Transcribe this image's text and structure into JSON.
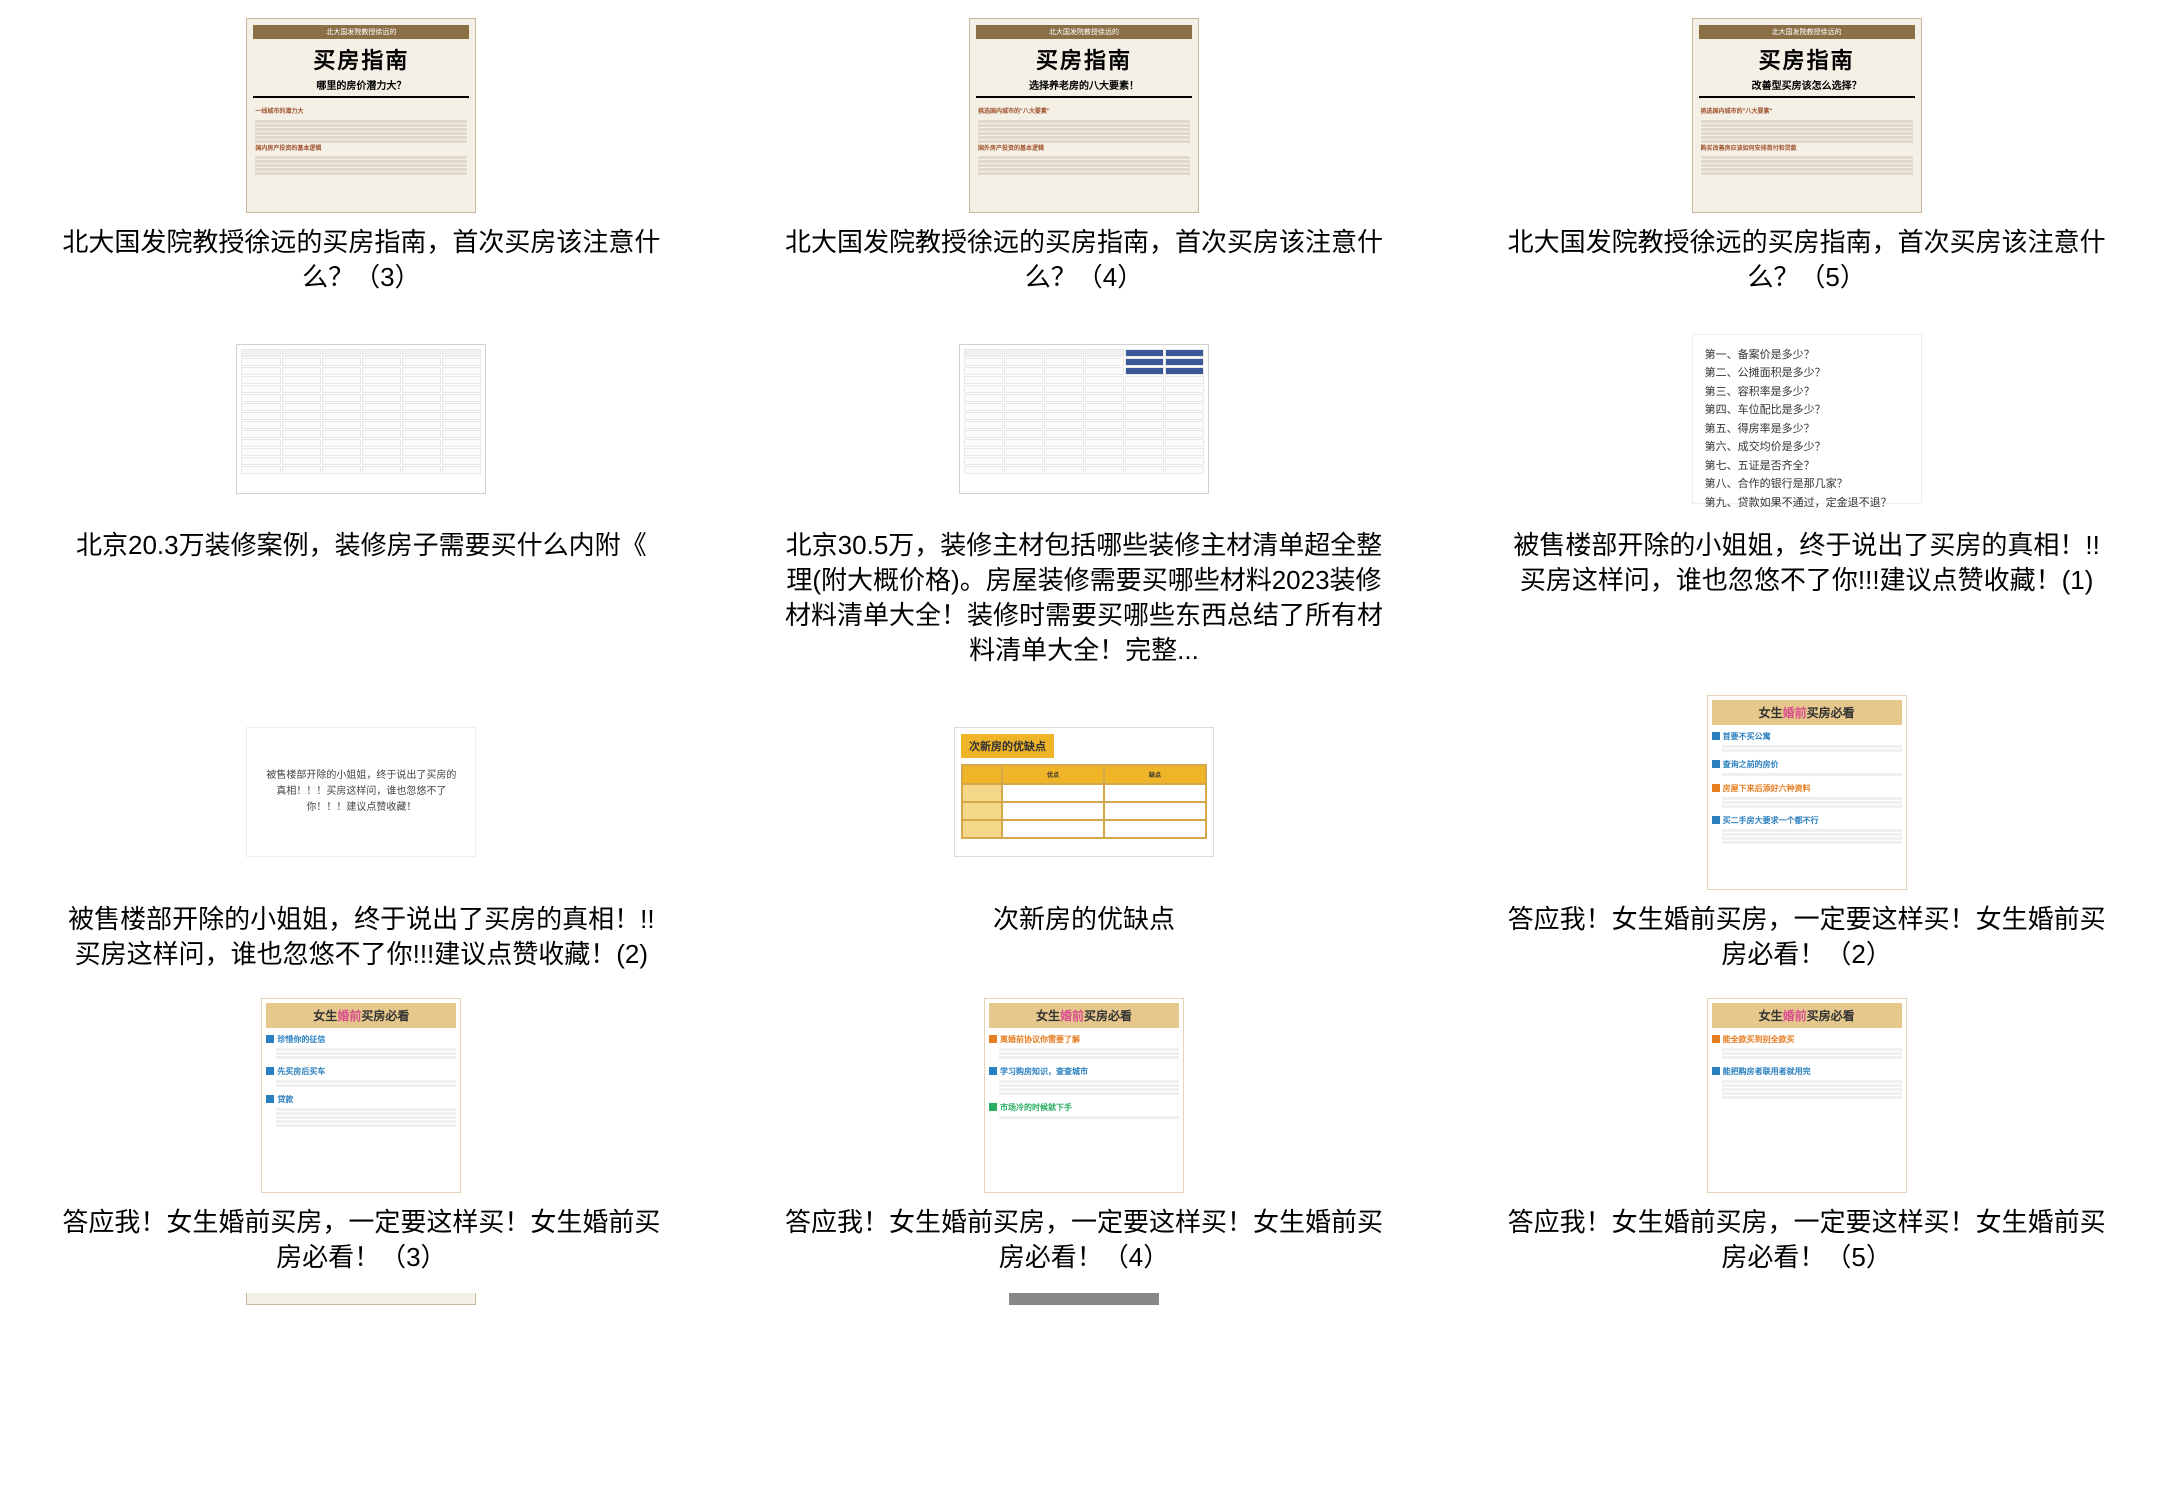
{
  "colors": {
    "bg": "#ffffff",
    "text": "#000000",
    "guide_bg": "#f5f0e6",
    "guide_border": "#c8b99a",
    "guide_banner": "#8b6f47",
    "pink_header_bg": "#e6c88c",
    "pink_hl": "#d94f8f",
    "table_accent": "#f0b429"
  },
  "guide_banner_text": "北大国发院教授徐远的",
  "guide_title": "买房指南",
  "items": [
    {
      "type": "guide",
      "subtitle": "哪里的房价潜力大？",
      "section1": "一线城市的潜力大",
      "section2": "国内房产投资的基本逻辑",
      "caption": "北大国发院教授徐远的买房指南，首次买房该注意什么？（3）"
    },
    {
      "type": "guide",
      "subtitle": "选择养老房的八大要素！",
      "section1": "挑选国内城市的\"八大要素\"",
      "section2": "国外房产投资的基本逻辑",
      "caption": "北大国发院教授徐远的买房指南，首次买房该注意什么？（4）"
    },
    {
      "type": "guide",
      "subtitle": "改善型买房该怎么选择？",
      "section1": "挑选国内城市的\"八大要素\"",
      "section2": "购买改善房应该如何安排首付和贷款",
      "caption": "北大国发院教授徐远的买房指南，首次买房该注意什么？（5）"
    },
    {
      "type": "spreadsheet",
      "variant": "light",
      "caption": "北京20.3万装修案例，装修房子需要买什么内附《"
    },
    {
      "type": "spreadsheet",
      "variant": "dark",
      "caption": "北京30.5万，装修主材包括哪些装修主材清单超全整理(附大概价格)。房屋装修需要买哪些材料2023装修材料清单大全！装修时需要买哪些东西总结了所有材料清单大全！完整..."
    },
    {
      "type": "qlist",
      "rows": [
        "第一、备案价是多少？",
        "第二、公摊面积是多少？",
        "第三、容积率是多少？",
        "第四、车位配比是多少？",
        "第五、得房率是多少？",
        "第六、成交均价是多少？",
        "第七、五证是否齐全？",
        "第八、合作的银行是那几家？",
        "第九、贷款如果不通过，定金退不退？"
      ],
      "caption": "被售楼部开除的小姐姐，终于说出了买房的真相！!!买房这样问，谁也忽悠不了你!!!建议点赞收藏！(1)"
    },
    {
      "type": "textcard",
      "text": "被售楼部开除的小姐姐，终于说出了买房的真相！！！买房这样问，谁也忽悠不了你！！！建议点赞收藏！",
      "caption": "被售楼部开除的小姐姐，终于说出了买房的真相！!!买房这样问，谁也忽悠不了你!!!建议点赞收藏！(2)"
    },
    {
      "type": "table",
      "title": "次新房的优缺点",
      "headers": [
        "",
        "优点",
        "缺点"
      ],
      "caption": "次新房的优缺点"
    },
    {
      "type": "pink",
      "sections": [
        {
          "h": "首要不买公寓",
          "color": "blue",
          "lines": 2
        },
        {
          "h": "查询之前的房价",
          "color": "blue",
          "lines": 1
        },
        {
          "h": "房屋下来后添好六种资料",
          "color": "orange",
          "lines": 3,
          "red": true
        },
        {
          "h": "买二手房大要求一个都不行",
          "color": "blue",
          "lines": 4
        }
      ],
      "caption": "答应我！女生婚前买房，一定要这样买！女生婚前买房必看！（2）"
    },
    {
      "type": "pink",
      "sections": [
        {
          "h": "珍惜你的征信",
          "color": "blue",
          "lines": 3
        },
        {
          "h": "先买房后买车",
          "color": "blue",
          "lines": 2
        },
        {
          "h": "贷款",
          "color": "blue",
          "lines": 5
        }
      ],
      "caption": "答应我！女生婚前买房，一定要这样买！女生婚前买房必看！（3）"
    },
    {
      "type": "pink",
      "sections": [
        {
          "h": "离婚前协议你需要了解",
          "color": "orange",
          "lines": 3,
          "red": true
        },
        {
          "h": "学习购房知识，查查城市",
          "color": "blue",
          "lines": 4
        },
        {
          "h": "市场冷的时候就下手",
          "color": "green",
          "lines": 1
        }
      ],
      "caption": "答应我！女生婚前买房，一定要这样买！女生婚前买房必看！（4）"
    },
    {
      "type": "pink",
      "sections": [
        {
          "h": "能全款买到别全款买",
          "color": "orange",
          "lines": 3,
          "red": true
        },
        {
          "h": "能把购房者联用者就用完",
          "color": "blue",
          "lines": 5
        }
      ],
      "caption": "答应我！女生婚前买房，一定要这样买！女生婚前买房必看！（5）"
    }
  ],
  "pink_header_pre": "女生",
  "pink_header_hl": "婚前",
  "pink_header_post": "买房必看"
}
